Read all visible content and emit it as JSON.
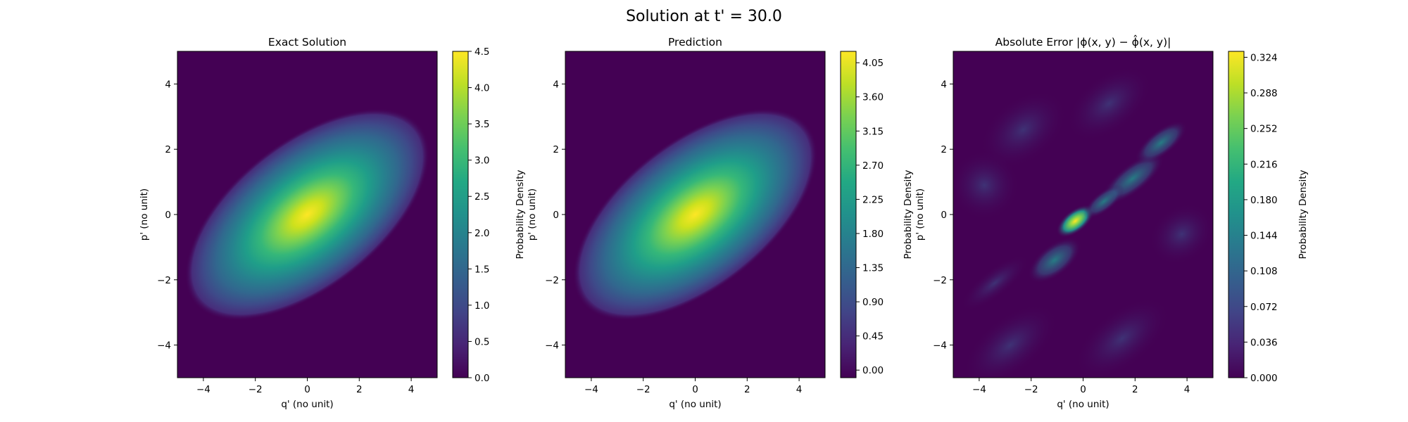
{
  "figure": {
    "title": "Solution at t' = 30.0"
  },
  "chart_data": [
    {
      "type": "heatmap",
      "title": "Exact Solution",
      "xlabel": "q' (no unit)",
      "ylabel": "p' (no unit)",
      "xlim": [
        -5,
        5
      ],
      "ylim": [
        -5,
        5
      ],
      "xticks": [
        -4,
        -2,
        0,
        2,
        4
      ],
      "yticks": [
        -4,
        -2,
        0,
        2,
        4
      ],
      "colormap": "viridis",
      "colorbar": {
        "label": "Probability Density",
        "range": [
          0.0,
          4.5
        ],
        "ticks": [
          "0.0",
          "0.5",
          "1.0",
          "1.5",
          "2.0",
          "2.5",
          "3.0",
          "3.5",
          "4.0",
          "4.5"
        ]
      },
      "peak": {
        "q": 0,
        "p": 0,
        "value": 4.5
      },
      "shape": "elongated Gaussian tilted along q' = p'"
    },
    {
      "type": "heatmap",
      "title": "Prediction",
      "xlabel": "q' (no unit)",
      "ylabel": "p' (no unit)",
      "xlim": [
        -5,
        5
      ],
      "ylim": [
        -5,
        5
      ],
      "xticks": [
        -4,
        -2,
        0,
        2,
        4
      ],
      "yticks": [
        -4,
        -2,
        0,
        2,
        4
      ],
      "colormap": "viridis",
      "colorbar": {
        "label": "Probability Density",
        "range": [
          -0.1,
          4.2
        ],
        "ticks": [
          "0.00",
          "0.45",
          "0.90",
          "1.35",
          "1.80",
          "2.25",
          "2.70",
          "3.15",
          "3.60",
          "4.05"
        ]
      },
      "peak": {
        "q": 0,
        "p": 0,
        "value": 4.1
      },
      "shape": "elongated Gaussian tilted along q' = p'"
    },
    {
      "type": "heatmap",
      "title": "Absolute Error |ϕ(x, y) − ϕ̂(x, y)|",
      "xlabel": "q' (no unit)",
      "ylabel": "p' (no unit)",
      "xlim": [
        -5,
        5
      ],
      "ylim": [
        -5,
        5
      ],
      "xticks": [
        -4,
        -2,
        0,
        2,
        4
      ],
      "yticks": [
        -4,
        -2,
        0,
        2,
        4
      ],
      "colormap": "viridis",
      "colorbar": {
        "label": "Probability Density",
        "range": [
          0.0,
          0.33
        ],
        "ticks": [
          "0.000",
          "0.036",
          "0.072",
          "0.108",
          "0.144",
          "0.180",
          "0.216",
          "0.252",
          "0.288",
          "0.324"
        ]
      },
      "peak": {
        "q": -0.3,
        "p": -0.2,
        "value": 0.33
      },
      "shape": "oscillatory stripes tilted along q' = p' with peak near origin"
    }
  ]
}
